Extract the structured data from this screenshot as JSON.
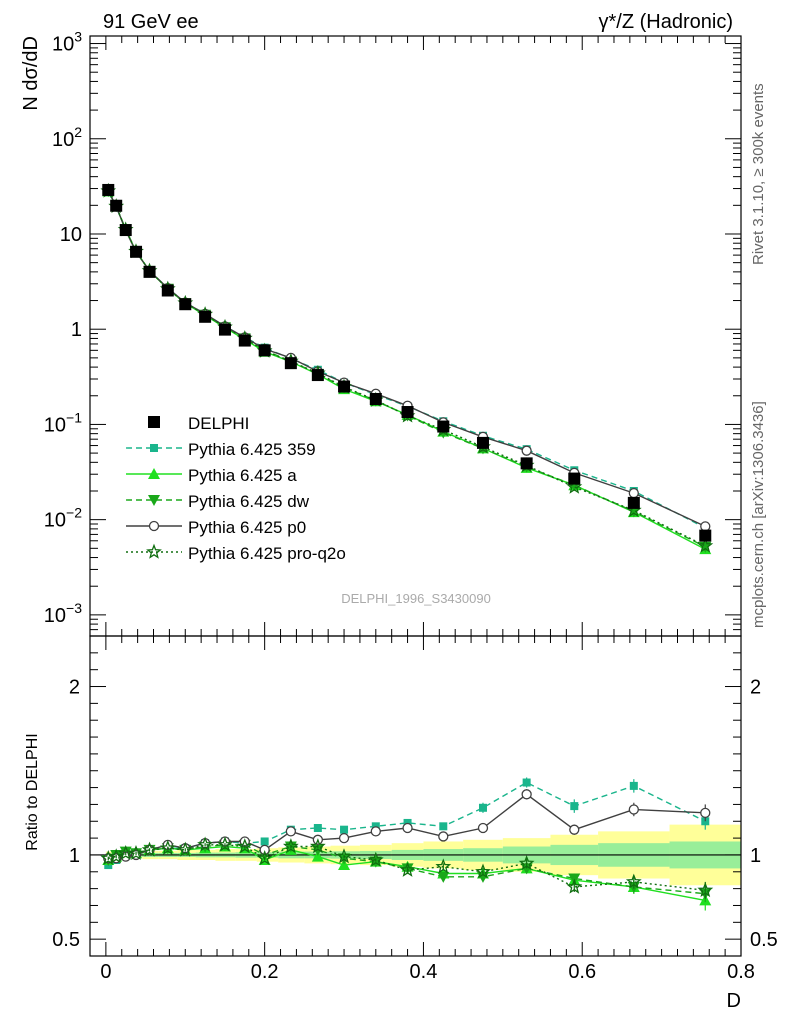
{
  "header": {
    "left": "91 GeV ee",
    "right": "γ*/Z (Hadronic)"
  },
  "side_labels": {
    "rivet": "Rivet 3.1.10, ≥ 300k events",
    "mcplots": "mcplots.cern.ch [arXiv:1306.3436]"
  },
  "analysis_id": "DELPHI_1996_S3430090",
  "chart_data": [
    {
      "type": "scatter",
      "panel": "main",
      "ylabel": "N dσ/dD",
      "xlabel": "D",
      "yscale": "log",
      "ylim": [
        0.0006,
        1200
      ],
      "xlim": [
        -0.02,
        0.8
      ],
      "legend_position": "left-middle",
      "y_tick_labels": [
        "10^-3",
        "10^-2",
        "10^-1",
        "1",
        "10",
        "10^2",
        "10^3"
      ],
      "x": [
        0.003,
        0.013,
        0.025,
        0.038,
        0.055,
        0.078,
        0.1,
        0.125,
        0.15,
        0.175,
        0.2,
        0.233,
        0.267,
        0.3,
        0.34,
        0.38,
        0.425,
        0.475,
        0.53,
        0.59,
        0.665,
        0.755
      ],
      "series": [
        {
          "name": "DELPHI",
          "color": "#000000",
          "marker": "square",
          "line": "none",
          "values": [
            29,
            19.8,
            11,
            6.5,
            4.0,
            2.55,
            1.83,
            1.35,
            0.99,
            0.76,
            0.6,
            0.44,
            0.33,
            0.25,
            0.185,
            0.135,
            0.095,
            0.064,
            0.039,
            0.027,
            0.015,
            0.0068
          ]
        },
        {
          "name": "Pythia 6.425 359",
          "color": "#1ab58c",
          "marker": "square-small",
          "line": "dashed",
          "values": [
            27.5,
            19.2,
            11.1,
            6.55,
            4.1,
            2.7,
            1.9,
            1.45,
            1.07,
            0.82,
            0.64,
            0.49,
            0.375,
            0.275,
            0.205,
            0.155,
            0.108,
            0.076,
            0.055,
            0.033,
            0.02,
            0.0082
          ]
        },
        {
          "name": "Pythia 6.425 a",
          "color": "#20e020",
          "marker": "triangle-up",
          "line": "solid",
          "values": [
            28,
            19.5,
            11.1,
            6.6,
            4.1,
            2.65,
            1.87,
            1.4,
            1.04,
            0.78,
            0.58,
            0.455,
            0.335,
            0.235,
            0.175,
            0.126,
            0.084,
            0.056,
            0.035,
            0.023,
            0.012,
            0.0049
          ]
        },
        {
          "name": "Pythia 6.425 dw",
          "color": "#1aa81a",
          "marker": "triangle-down",
          "line": "dashed",
          "values": [
            28.2,
            19.6,
            11.2,
            6.6,
            4.1,
            2.66,
            1.88,
            1.42,
            1.05,
            0.8,
            0.6,
            0.46,
            0.34,
            0.245,
            0.178,
            0.124,
            0.082,
            0.056,
            0.036,
            0.023,
            0.0122,
            0.0052
          ]
        },
        {
          "name": "Pythia 6.425 p0",
          "color": "#404040",
          "marker": "circle-open",
          "line": "solid",
          "values": [
            28.5,
            19.5,
            10.9,
            6.5,
            4.1,
            2.7,
            1.9,
            1.45,
            1.07,
            0.82,
            0.62,
            0.5,
            0.36,
            0.275,
            0.21,
            0.157,
            0.105,
            0.074,
            0.053,
            0.031,
            0.019,
            0.0085
          ]
        },
        {
          "name": "Pythia 6.425 pro-q2o",
          "color": "#106e10",
          "marker": "star-open",
          "line": "dotted",
          "values": [
            28.3,
            19.5,
            11.1,
            6.55,
            4.1,
            2.65,
            1.88,
            1.43,
            1.05,
            0.8,
            0.59,
            0.46,
            0.345,
            0.248,
            0.18,
            0.123,
            0.088,
            0.058,
            0.037,
            0.022,
            0.0125,
            0.0053
          ]
        }
      ]
    },
    {
      "type": "scatter",
      "panel": "ratio",
      "ylabel": "Ratio to DELPHI",
      "xlabel": "D",
      "ylim": [
        0.4,
        2.3
      ],
      "xlim": [
        -0.02,
        0.8
      ],
      "y_tick_labels": [
        "0.5",
        "1",
        "2"
      ],
      "x_tick_labels": [
        "0",
        "0.2",
        "0.4",
        "0.6",
        "0.8"
      ],
      "x": [
        0.003,
        0.013,
        0.025,
        0.038,
        0.055,
        0.078,
        0.1,
        0.125,
        0.15,
        0.175,
        0.2,
        0.233,
        0.267,
        0.3,
        0.34,
        0.38,
        0.425,
        0.475,
        0.53,
        0.59,
        0.665,
        0.755
      ],
      "uncertainty_bins": [
        0,
        0.008,
        0.019,
        0.031,
        0.046,
        0.066,
        0.09,
        0.113,
        0.138,
        0.163,
        0.19,
        0.217,
        0.25,
        0.283,
        0.32,
        0.36,
        0.4,
        0.45,
        0.5,
        0.56,
        0.62,
        0.71,
        0.8
      ],
      "stat_band": [
        0.01,
        0.01,
        0.01,
        0.01,
        0.012,
        0.012,
        0.012,
        0.014,
        0.014,
        0.016,
        0.016,
        0.02,
        0.02,
        0.022,
        0.024,
        0.03,
        0.035,
        0.04,
        0.05,
        0.06,
        0.07,
        0.08
      ],
      "total_band": [
        0.02,
        0.02,
        0.02,
        0.02,
        0.025,
        0.025,
        0.03,
        0.03,
        0.035,
        0.035,
        0.04,
        0.045,
        0.05,
        0.055,
        0.06,
        0.07,
        0.08,
        0.09,
        0.1,
        0.12,
        0.14,
        0.18
      ],
      "series": [
        {
          "name": "Pythia 6.425 359",
          "values": [
            0.94,
            0.97,
            1.01,
            1.0,
            1.03,
            1.04,
            1.04,
            1.07,
            1.08,
            1.07,
            1.08,
            1.15,
            1.16,
            1.15,
            1.17,
            1.19,
            1.17,
            1.28,
            1.43,
            1.29,
            1.41,
            1.2
          ],
          "err": [
            0.01,
            0.01,
            0.01,
            0.01,
            0.01,
            0.01,
            0.01,
            0.01,
            0.01,
            0.01,
            0.01,
            0.01,
            0.01,
            0.01,
            0.01,
            0.01,
            0.02,
            0.03,
            0.03,
            0.04,
            0.04,
            0.05
          ]
        },
        {
          "name": "Pythia 6.425 a",
          "values": [
            0.97,
            0.99,
            1.02,
            1.01,
            1.03,
            1.04,
            1.03,
            1.04,
            1.05,
            1.04,
            0.97,
            1.03,
            0.99,
            0.94,
            0.96,
            0.93,
            0.89,
            0.89,
            0.92,
            0.85,
            0.81,
            0.73
          ],
          "err": [
            0.01,
            0.01,
            0.01,
            0.01,
            0.01,
            0.01,
            0.01,
            0.01,
            0.01,
            0.01,
            0.01,
            0.01,
            0.01,
            0.01,
            0.01,
            0.02,
            0.02,
            0.02,
            0.03,
            0.03,
            0.04,
            0.06
          ]
        },
        {
          "name": "Pythia 6.425 dw",
          "values": [
            0.97,
            1.0,
            1.02,
            1.01,
            1.03,
            1.04,
            1.03,
            1.05,
            1.06,
            1.06,
            1.0,
            1.05,
            1.03,
            0.98,
            0.96,
            0.92,
            0.87,
            0.87,
            0.92,
            0.86,
            0.81,
            0.77
          ],
          "err": [
            0.01,
            0.01,
            0.01,
            0.01,
            0.01,
            0.01,
            0.01,
            0.01,
            0.01,
            0.01,
            0.01,
            0.01,
            0.01,
            0.01,
            0.01,
            0.02,
            0.02,
            0.02,
            0.03,
            0.03,
            0.04,
            0.05
          ]
        },
        {
          "name": "Pythia 6.425 p0",
          "values": [
            0.98,
            0.98,
            0.99,
            1.0,
            1.03,
            1.06,
            1.04,
            1.07,
            1.08,
            1.08,
            1.03,
            1.14,
            1.09,
            1.1,
            1.14,
            1.16,
            1.11,
            1.16,
            1.36,
            1.15,
            1.27,
            1.25
          ],
          "err": [
            0.01,
            0.01,
            0.01,
            0.01,
            0.01,
            0.01,
            0.01,
            0.01,
            0.01,
            0.01,
            0.01,
            0.01,
            0.01,
            0.01,
            0.01,
            0.01,
            0.02,
            0.02,
            0.03,
            0.03,
            0.04,
            0.05
          ]
        },
        {
          "name": "Pythia 6.425 pro-q2o",
          "values": [
            0.98,
            0.99,
            1.01,
            1.01,
            1.03,
            1.04,
            1.03,
            1.06,
            1.06,
            1.05,
            0.98,
            1.05,
            1.05,
            0.99,
            0.97,
            0.91,
            0.93,
            0.9,
            0.95,
            0.81,
            0.84,
            0.79
          ],
          "err": [
            0.01,
            0.01,
            0.01,
            0.01,
            0.01,
            0.01,
            0.01,
            0.01,
            0.01,
            0.01,
            0.01,
            0.01,
            0.01,
            0.01,
            0.01,
            0.02,
            0.02,
            0.02,
            0.03,
            0.03,
            0.04,
            0.05
          ]
        }
      ]
    }
  ]
}
